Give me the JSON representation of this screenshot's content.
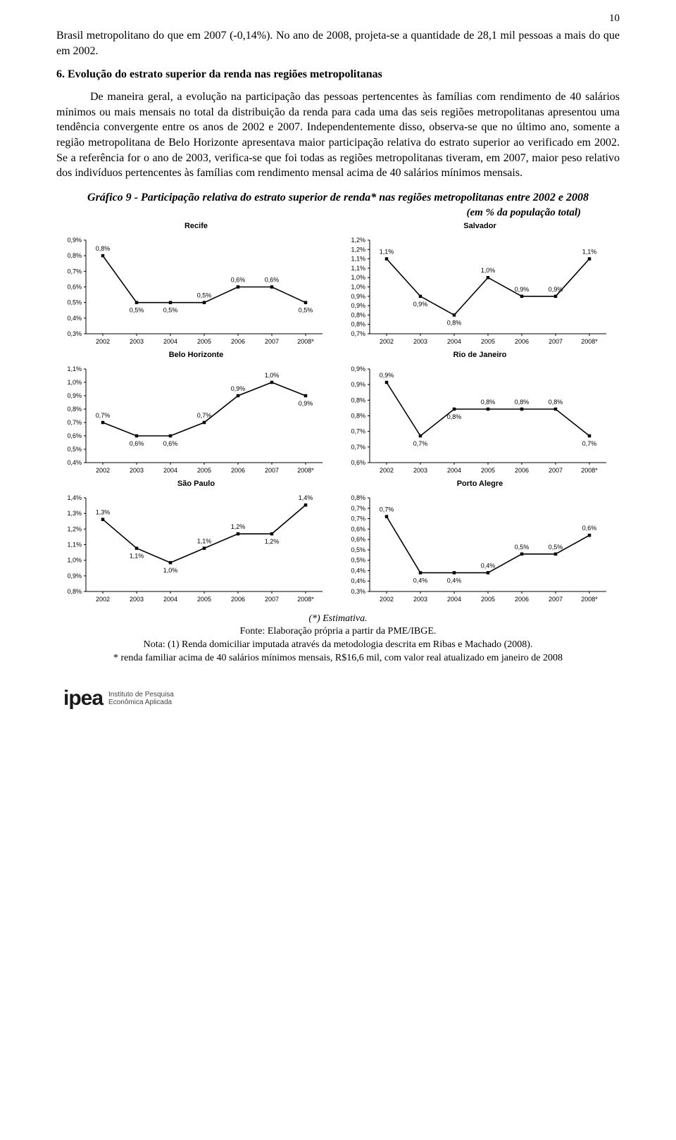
{
  "page_number": "10",
  "para1": "Brasil metropolitano do que em 2007 (-0,14%). No ano de 2008, projeta-se a quantidade de 28,1 mil pessoas a mais do que em 2002.",
  "section_heading": "6. Evolução do estrato superior da renda nas regiões metropolitanas",
  "para2": "De maneira geral, a evolução na participação das pessoas pertencentes às famílias com rendimento de 40 salários mínimos ou mais mensais no total da distribuição da renda para cada uma das seis regiões metropolitanas apresentou uma tendência convergente entre os anos de 2002 e 2007. Independentemente disso, observa-se que no último ano, somente a região metropolitana de Belo Horizonte apresentava maior participação relativa do estrato superior ao verificado em 2002. Se a referência for o ano de 2003, verifica-se que foi todas as regiões metropolitanas tiveram, em 2007, maior peso relativo dos indivíduos pertencentes às famílias com rendimento mensal acima de 40 salários mínimos mensais.",
  "chart_main_title": "Gráfico 9 - Participação relativa do estrato superior de renda* nas regiões metropolitanas entre 2002 e 2008",
  "chart_subtitle": "(em % da população total)",
  "x_labels": [
    "2002",
    "2003",
    "2004",
    "2005",
    "2006",
    "2007",
    "2008*"
  ],
  "style": {
    "line_color": "#000000",
    "line_width": 1.6,
    "axis_color": "#000000",
    "axis_width": 1,
    "tick_color": "#000000",
    "marker_fill": "#000000",
    "marker_size": 4.5,
    "label_font_family": "Arial, sans-serif",
    "axis_label_fontsize": 9,
    "value_label_fontsize": 9,
    "background": "#ffffff"
  },
  "charts": [
    {
      "name": "Recife",
      "values": [
        0.8,
        0.5,
        0.5,
        0.5,
        0.6,
        0.6,
        0.5
      ],
      "labels": [
        "0,8%",
        "0,5%",
        "0,5%",
        "0,5%",
        "0,6%",
        "0,6%",
        "0,5%"
      ],
      "y_ticks": [
        0.3,
        0.4,
        0.5,
        0.6,
        0.7,
        0.8,
        0.9
      ],
      "y_tick_labels": [
        "0,3%",
        "0,4%",
        "0,5%",
        "0,6%",
        "0,7%",
        "0,8%",
        "0,9%"
      ],
      "y_min": 0.3,
      "y_max": 0.9,
      "label_positions": [
        "above",
        "below",
        "below",
        "above",
        "above",
        "above",
        "below"
      ]
    },
    {
      "name": "Salvador",
      "values": [
        1.1,
        0.9,
        0.8,
        1.0,
        0.9,
        0.9,
        1.1
      ],
      "labels": [
        "1,1%",
        "0,9%",
        "0,8%",
        "1,0%",
        "0,9%",
        "0,9%",
        "1,1%"
      ],
      "y_ticks": [
        0.7,
        0.8,
        0.8,
        0.9,
        0.9,
        1.0,
        1.0,
        1.1,
        1.1,
        1.2,
        1.2
      ],
      "y_tick_labels": [
        "0,7%",
        "0,8%",
        "0,8%",
        "0,9%",
        "0,9%",
        "1,0%",
        "1,0%",
        "1,1%",
        "1,1%",
        "1,2%",
        "1,2%"
      ],
      "y_min": 0.7,
      "y_max": 1.2,
      "label_positions": [
        "above",
        "below",
        "below",
        "above",
        "above",
        "above",
        "above"
      ]
    },
    {
      "name": "Belo Horizonte",
      "values": [
        0.7,
        0.6,
        0.6,
        0.7,
        0.9,
        1.0,
        0.9
      ],
      "labels": [
        "0,7%",
        "0,6%",
        "0,6%",
        "0,7%",
        "0,9%",
        "1,0%",
        "0,9%"
      ],
      "y_ticks": [
        0.4,
        0.5,
        0.6,
        0.7,
        0.8,
        0.9,
        1.0,
        1.1
      ],
      "y_tick_labels": [
        "0,4%",
        "0,5%",
        "0,6%",
        "0,7%",
        "0,8%",
        "0,9%",
        "1,0%",
        "1,1%"
      ],
      "y_min": 0.4,
      "y_max": 1.1,
      "label_positions": [
        "above",
        "below",
        "below",
        "above",
        "above",
        "above",
        "below"
      ]
    },
    {
      "name": "Rio de Janeiro",
      "values": [
        0.9,
        0.7,
        0.8,
        0.8,
        0.8,
        0.8,
        0.7
      ],
      "labels": [
        "0,9%",
        "0,7%",
        "0,8%",
        "0,8%",
        "0,8%",
        "0,8%",
        "0,7%"
      ],
      "y_ticks": [
        0.6,
        0.7,
        0.7,
        0.8,
        0.8,
        0.9,
        0.9
      ],
      "y_tick_labels": [
        "0,6%",
        "0,7%",
        "0,7%",
        "0,8%",
        "0,8%",
        "0,9%",
        "0,9%"
      ],
      "y_min": 0.6,
      "y_max": 0.95,
      "label_positions": [
        "above",
        "below",
        "below",
        "above",
        "above",
        "above",
        "below"
      ]
    },
    {
      "name": "São Paulo",
      "values": [
        1.3,
        1.1,
        1.0,
        1.1,
        1.2,
        1.2,
        1.4
      ],
      "labels": [
        "1,3%",
        "1,1%",
        "1,0%",
        "1,1%",
        "1,2%",
        "1,2%",
        "1,4%"
      ],
      "y_ticks": [
        0.8,
        0.9,
        1.0,
        1.1,
        1.2,
        1.3,
        1.4
      ],
      "y_tick_labels": [
        "0,8%",
        "0,9%",
        "1,0%",
        "1,1%",
        "1,2%",
        "1,3%",
        "1,4%"
      ],
      "y_min": 0.8,
      "y_max": 1.45,
      "label_positions": [
        "above",
        "below",
        "below",
        "above",
        "above",
        "below",
        "above"
      ]
    },
    {
      "name": "Porto Alegre",
      "values": [
        0.7,
        0.4,
        0.4,
        0.4,
        0.5,
        0.5,
        0.6
      ],
      "labels": [
        "0,7%",
        "0,4%",
        "0,4%",
        "0,4%",
        "0,5%",
        "0,5%",
        "0,6%"
      ],
      "y_ticks": [
        0.3,
        0.4,
        0.4,
        0.5,
        0.5,
        0.6,
        0.6,
        0.7,
        0.7,
        0.8
      ],
      "y_tick_labels": [
        "0,3%",
        "0,4%",
        "0,4%",
        "0,5%",
        "0,5%",
        "0,6%",
        "0,6%",
        "0,7%",
        "0,7%",
        "0,8%"
      ],
      "y_min": 0.3,
      "y_max": 0.8,
      "label_positions": [
        "above",
        "below",
        "below",
        "above",
        "above",
        "above",
        "above"
      ]
    }
  ],
  "notes": {
    "estimate": "(*) Estimativa.",
    "source": "Fonte: Elaboração própria a partir da PME/IBGE.",
    "note1": "Nota: (1) Renda domiciliar imputada através da metodologia descrita em Ribas e Machado (2008).",
    "note2": "* renda familiar acima de 40 salários mínimos mensais, R$16,6 mil, com valor real atualizado em janeiro de 2008"
  },
  "logo": {
    "word": "ipea",
    "sub1": "Instituto de Pesquisa",
    "sub2": "Econômica Aplicada"
  }
}
